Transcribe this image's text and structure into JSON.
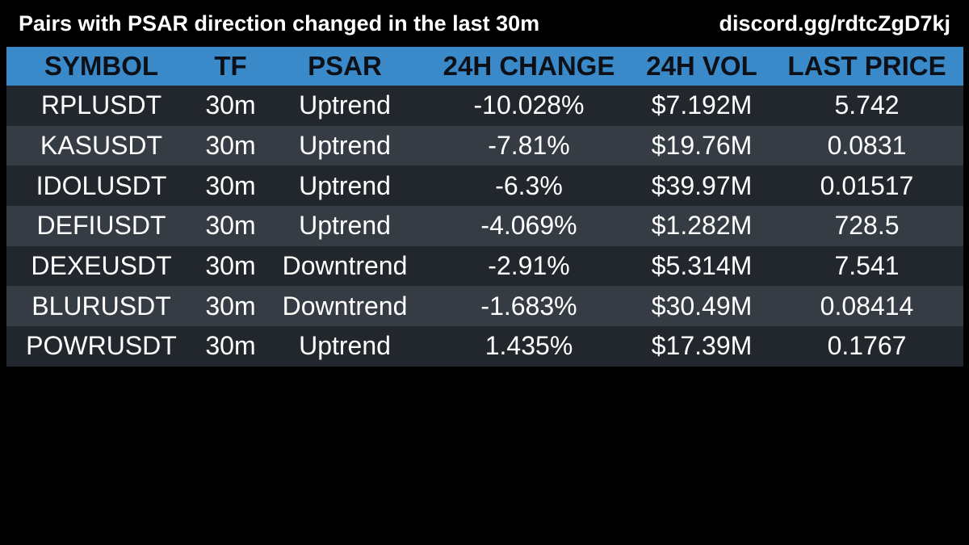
{
  "header": {
    "title": "Pairs with PSAR direction changed in the last 30m",
    "link": "discord.gg/rdtcZgD7kj"
  },
  "colors": {
    "background": "#000000",
    "header_row": "#3a89c8",
    "row_dark": "#22272d",
    "row_light": "#363c43",
    "header_text": "#0d1117",
    "cell_text": "#ffffff"
  },
  "chart_data": {
    "type": "table",
    "columns": [
      "SYMBOL",
      "TF",
      "PSAR",
      "24H CHANGE",
      "24H VOL",
      "LAST PRICE"
    ],
    "rows": [
      [
        "RPLUSDT",
        "30m",
        "Uptrend",
        "-10.028%",
        "$7.192M",
        "5.742"
      ],
      [
        "KASUSDT",
        "30m",
        "Uptrend",
        "-7.81%",
        "$19.76M",
        "0.0831"
      ],
      [
        "IDOLUSDT",
        "30m",
        "Uptrend",
        "-6.3%",
        "$39.97M",
        "0.01517"
      ],
      [
        "DEFIUSDT",
        "30m",
        "Uptrend",
        "-4.069%",
        "$1.282M",
        "728.5"
      ],
      [
        "DEXEUSDT",
        "30m",
        "Downtrend",
        "-2.91%",
        "$5.314M",
        "7.541"
      ],
      [
        "BLURUSDT",
        "30m",
        "Downtrend",
        "-1.683%",
        "$30.49M",
        "0.08414"
      ],
      [
        "POWRUSDT",
        "30m",
        "Uptrend",
        "1.435%",
        "$17.39M",
        "0.1767"
      ]
    ]
  }
}
